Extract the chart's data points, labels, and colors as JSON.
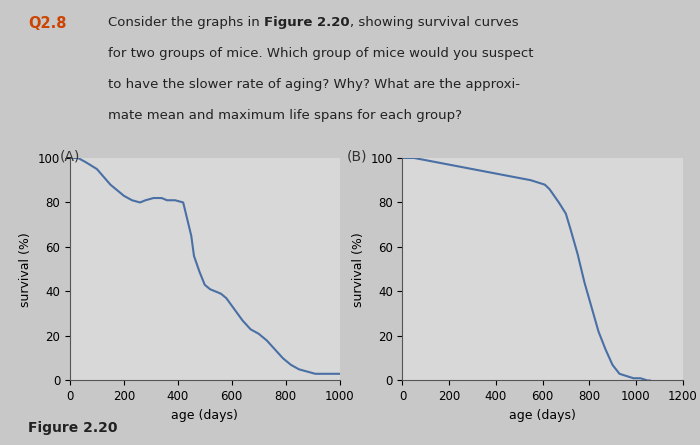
{
  "fig_bg": "#c8c8c8",
  "plot_bg": "#d8d8d8",
  "line_color": "#4a6fa5",
  "line_width": 1.5,
  "panel_A_label": "(A)",
  "panel_B_label": "(B)",
  "figure_caption": "Figure 2.20",
  "q_label": "Q2.8",
  "q_label_color": "#cc4400",
  "text_color": "#222222",
  "text_fontsize": 9.5,
  "panel_label_fontsize": 10,
  "axis_fontsize": 8.5,
  "xlabel_fontsize": 9.0,
  "ylabel_fontsize": 9.0,
  "panel_A": {
    "xlabel": "age (days)",
    "ylabel": "survival (%)",
    "xlim": [
      0,
      1000
    ],
    "ylim": [
      0,
      100
    ],
    "xticks": [
      0,
      200,
      400,
      600,
      800,
      1000
    ],
    "yticks": [
      0,
      20,
      40,
      60,
      80,
      100
    ],
    "x": [
      0,
      30,
      60,
      100,
      150,
      200,
      230,
      260,
      280,
      310,
      340,
      360,
      390,
      420,
      450,
      460,
      480,
      500,
      520,
      540,
      560,
      580,
      610,
      640,
      670,
      700,
      730,
      760,
      790,
      820,
      850,
      880,
      910,
      940,
      970,
      1000
    ],
    "y": [
      100,
      100,
      98,
      95,
      88,
      83,
      81,
      80,
      81,
      82,
      82,
      81,
      81,
      80,
      65,
      56,
      49,
      43,
      41,
      40,
      39,
      37,
      32,
      27,
      23,
      21,
      18,
      14,
      10,
      7,
      5,
      4,
      3,
      3,
      3,
      3
    ]
  },
  "panel_B": {
    "xlabel": "age (days)",
    "ylabel": "survival (%)",
    "xlim": [
      0,
      1200
    ],
    "ylim": [
      0,
      100
    ],
    "xticks": [
      0,
      200,
      400,
      600,
      800,
      1000,
      1200
    ],
    "yticks": [
      0,
      20,
      40,
      60,
      80,
      100
    ],
    "x": [
      0,
      50,
      100,
      150,
      200,
      300,
      400,
      500,
      550,
      580,
      610,
      630,
      650,
      670,
      700,
      720,
      750,
      780,
      810,
      840,
      870,
      900,
      930,
      960,
      990,
      1020,
      1050,
      1060
    ],
    "y": [
      100,
      100,
      99,
      98,
      97,
      95,
      93,
      91,
      90,
      89,
      88,
      86,
      83,
      80,
      75,
      68,
      57,
      44,
      33,
      22,
      14,
      7,
      3,
      2,
      1,
      1,
      0,
      0
    ]
  }
}
